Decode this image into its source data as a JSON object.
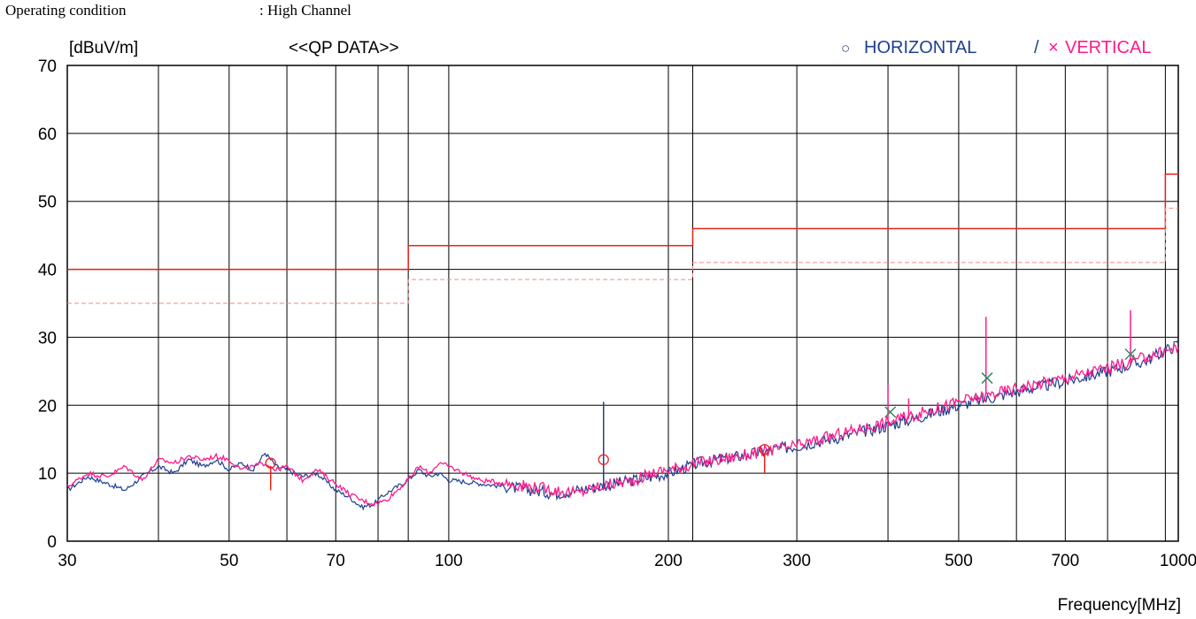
{
  "header": {
    "operating_condition_label": "Operating condition",
    "operating_condition_value": ": High Channel"
  },
  "chart_data": {
    "type": "line",
    "ylabel": "[dBuV/m]",
    "xlabel": "Frequency[MHz]",
    "subtitle": "<<QP DATA>>",
    "x_scale": "log",
    "xlim": [
      30,
      1000
    ],
    "ylim": [
      0,
      70
    ],
    "grid": true,
    "x_ticks": [
      30,
      50,
      70,
      100,
      200,
      300,
      500,
      700,
      1000
    ],
    "x_tick_labels": [
      "30",
      "50",
      "70",
      "100",
      "200",
      "300",
      "500",
      "700",
      "1000"
    ],
    "x_minor_gridlines": [
      40,
      60,
      80,
      88,
      216,
      400,
      600,
      800,
      960
    ],
    "y_ticks": [
      0,
      10,
      20,
      30,
      40,
      50,
      60,
      70
    ],
    "legend": {
      "placement": "top-right",
      "entries": [
        {
          "marker": "○",
          "label": "HORIZONTAL",
          "color": "#1f3f8f"
        },
        {
          "separator": "/"
        },
        {
          "marker": "×",
          "label": "VERTICAL",
          "color": "#ff1a8c"
        }
      ]
    },
    "limits": [
      {
        "style": "solid",
        "color": "#e8231b",
        "points": [
          [
            30,
            40
          ],
          [
            88,
            40
          ],
          [
            88,
            43.5
          ],
          [
            216,
            43.5
          ],
          [
            216,
            46
          ],
          [
            960,
            46
          ],
          [
            960,
            54
          ],
          [
            1000,
            54
          ]
        ]
      },
      {
        "style": "dashed",
        "color": "#f08a86",
        "points": [
          [
            30,
            35
          ],
          [
            88,
            35
          ],
          [
            88,
            38.5
          ],
          [
            216,
            38.5
          ],
          [
            216,
            41
          ],
          [
            960,
            41
          ],
          [
            960,
            49
          ],
          [
            1000,
            49
          ]
        ]
      }
    ],
    "series": [
      {
        "color": "#1f3f8f",
        "x": [
          30,
          32,
          34,
          36,
          38,
          40,
          42,
          44,
          46,
          48,
          50,
          52,
          54,
          56,
          58,
          60,
          63,
          66,
          70,
          73,
          76,
          79,
          82,
          85,
          88,
          91,
          94,
          97,
          100,
          110,
          120,
          130,
          140,
          150,
          160,
          170,
          180,
          190,
          200,
          220,
          250,
          280,
          300,
          350,
          400,
          450,
          500,
          550,
          600,
          700,
          800,
          900,
          1000
        ],
        "y": [
          7.5,
          9.5,
          8.5,
          7.5,
          9.5,
          11,
          10,
          12,
          11,
          12,
          10.5,
          11.5,
          10.5,
          13,
          11,
          10.5,
          9.5,
          10,
          7.5,
          6.5,
          5,
          5.5,
          7,
          8,
          9,
          10.5,
          9.5,
          10,
          9,
          8.5,
          8,
          7.5,
          7,
          7.5,
          8,
          8.5,
          9,
          9.5,
          10,
          11.5,
          12.5,
          13.5,
          14,
          15.5,
          17,
          18.5,
          20,
          21,
          22,
          23.5,
          25,
          26.5,
          29
        ]
      },
      {
        "color": "#ff1a8c",
        "x": [
          30,
          32,
          34,
          36,
          38,
          40,
          42,
          44,
          46,
          48,
          50,
          52,
          54,
          56,
          58,
          60,
          63,
          66,
          70,
          73,
          76,
          79,
          82,
          85,
          88,
          91,
          94,
          97,
          100,
          110,
          120,
          130,
          140,
          150,
          160,
          170,
          180,
          190,
          200,
          220,
          250,
          280,
          300,
          350,
          400,
          450,
          500,
          550,
          600,
          700,
          800,
          900,
          1000
        ],
        "y": [
          8,
          10,
          9.5,
          11,
          9,
          12,
          11.5,
          12.5,
          12,
          12.5,
          12,
          10.5,
          11,
          11.5,
          10.5,
          11,
          9,
          10.5,
          8.5,
          7,
          6,
          5.5,
          6,
          7.5,
          9,
          11,
          10,
          11.5,
          11,
          9,
          8.5,
          8,
          7.5,
          7,
          8,
          8.5,
          9,
          10,
          10.5,
          11.5,
          12.5,
          13.5,
          14,
          16,
          17.5,
          19,
          20.5,
          21.5,
          22.5,
          24,
          25.5,
          27,
          28.5
        ]
      }
    ],
    "spikes": [
      {
        "x": 57,
        "y0": 11,
        "y1": 7.5,
        "color": "#e8231b"
      },
      {
        "x": 163,
        "y0": 8,
        "y1": 20.5,
        "color": "#1f3f8f"
      },
      {
        "x": 271,
        "y0": 13,
        "y1": 10,
        "color": "#e8231b"
      },
      {
        "x": 400,
        "y0": 17,
        "y1": 23,
        "color": "#ff1a8c"
      },
      {
        "x": 427,
        "y0": 18,
        "y1": 21,
        "color": "#ff1a8c"
      },
      {
        "x": 545,
        "y0": 22,
        "y1": 33,
        "color": "#ff1a8c"
      },
      {
        "x": 860,
        "y0": 26,
        "y1": 34,
        "color": "#ff1a8c"
      }
    ],
    "markers": [
      {
        "x": 57,
        "y": 11.5,
        "symbol": "circle",
        "color": "#e8231b"
      },
      {
        "x": 163,
        "y": 12,
        "symbol": "circle",
        "color": "#e8231b"
      },
      {
        "x": 271,
        "y": 13.5,
        "symbol": "circle",
        "color": "#e8231b"
      },
      {
        "x": 403,
        "y": 19,
        "symbol": "cross",
        "color": "#2e8b57"
      },
      {
        "x": 547,
        "y": 24,
        "symbol": "cross",
        "color": "#2e8b57"
      },
      {
        "x": 860,
        "y": 27.5,
        "symbol": "cross",
        "color": "#2e8b57"
      }
    ]
  }
}
